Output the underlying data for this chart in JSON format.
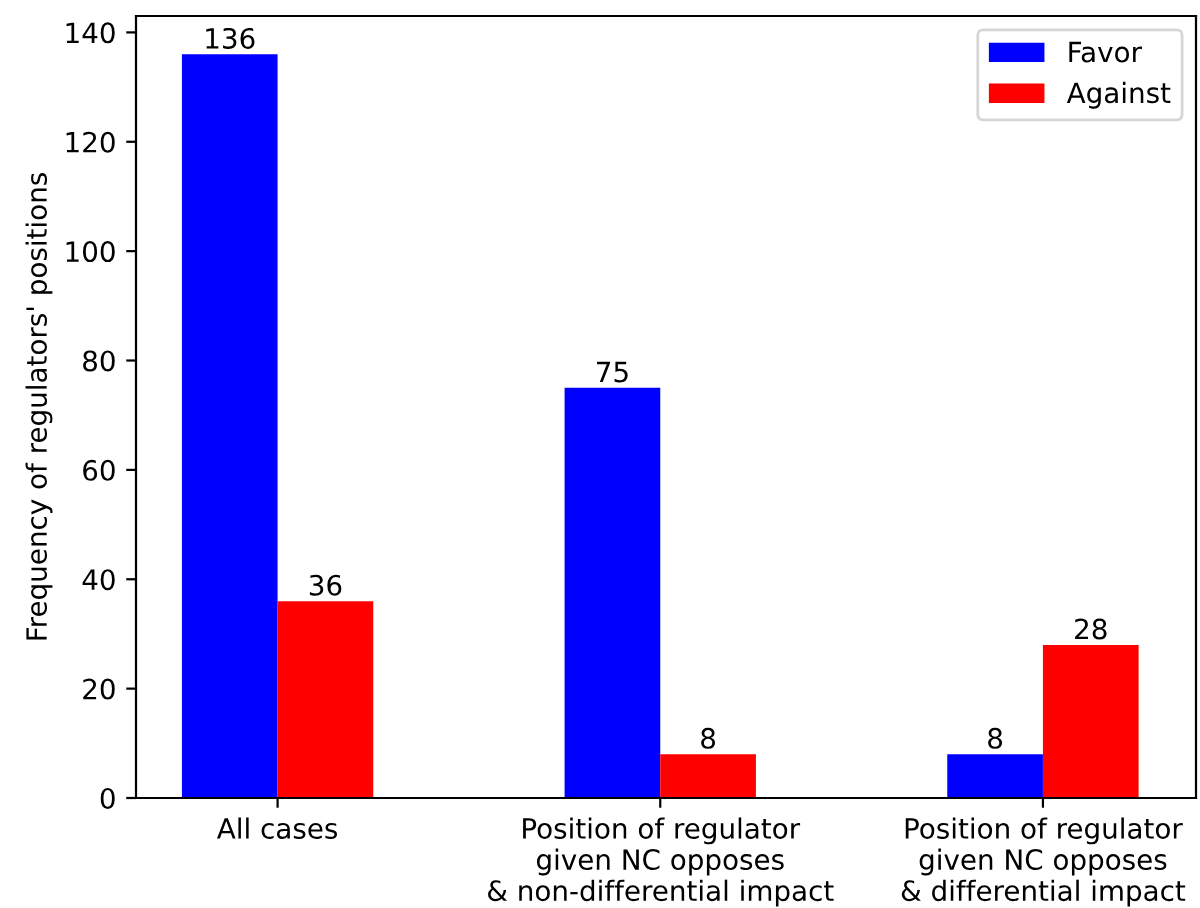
{
  "chart_data": {
    "type": "bar",
    "ylabel": "Frequency of regulators' positions",
    "categories": [
      "All cases",
      "Position of regulator\ngiven NC opposes\n& non-differential impact",
      "Position of regulator\ngiven NC opposes\n& differential impact"
    ],
    "series": [
      {
        "name": "Favor",
        "color": "#0000ff",
        "values": [
          136,
          75,
          8
        ]
      },
      {
        "name": "Against",
        "color": "#ff0000",
        "values": [
          36,
          8,
          28
        ]
      }
    ],
    "ylim": [
      0,
      143
    ],
    "yticks": [
      0,
      20,
      40,
      60,
      80,
      100,
      120,
      140
    ],
    "data_labels": true,
    "legend": "top right",
    "grid": false
  }
}
